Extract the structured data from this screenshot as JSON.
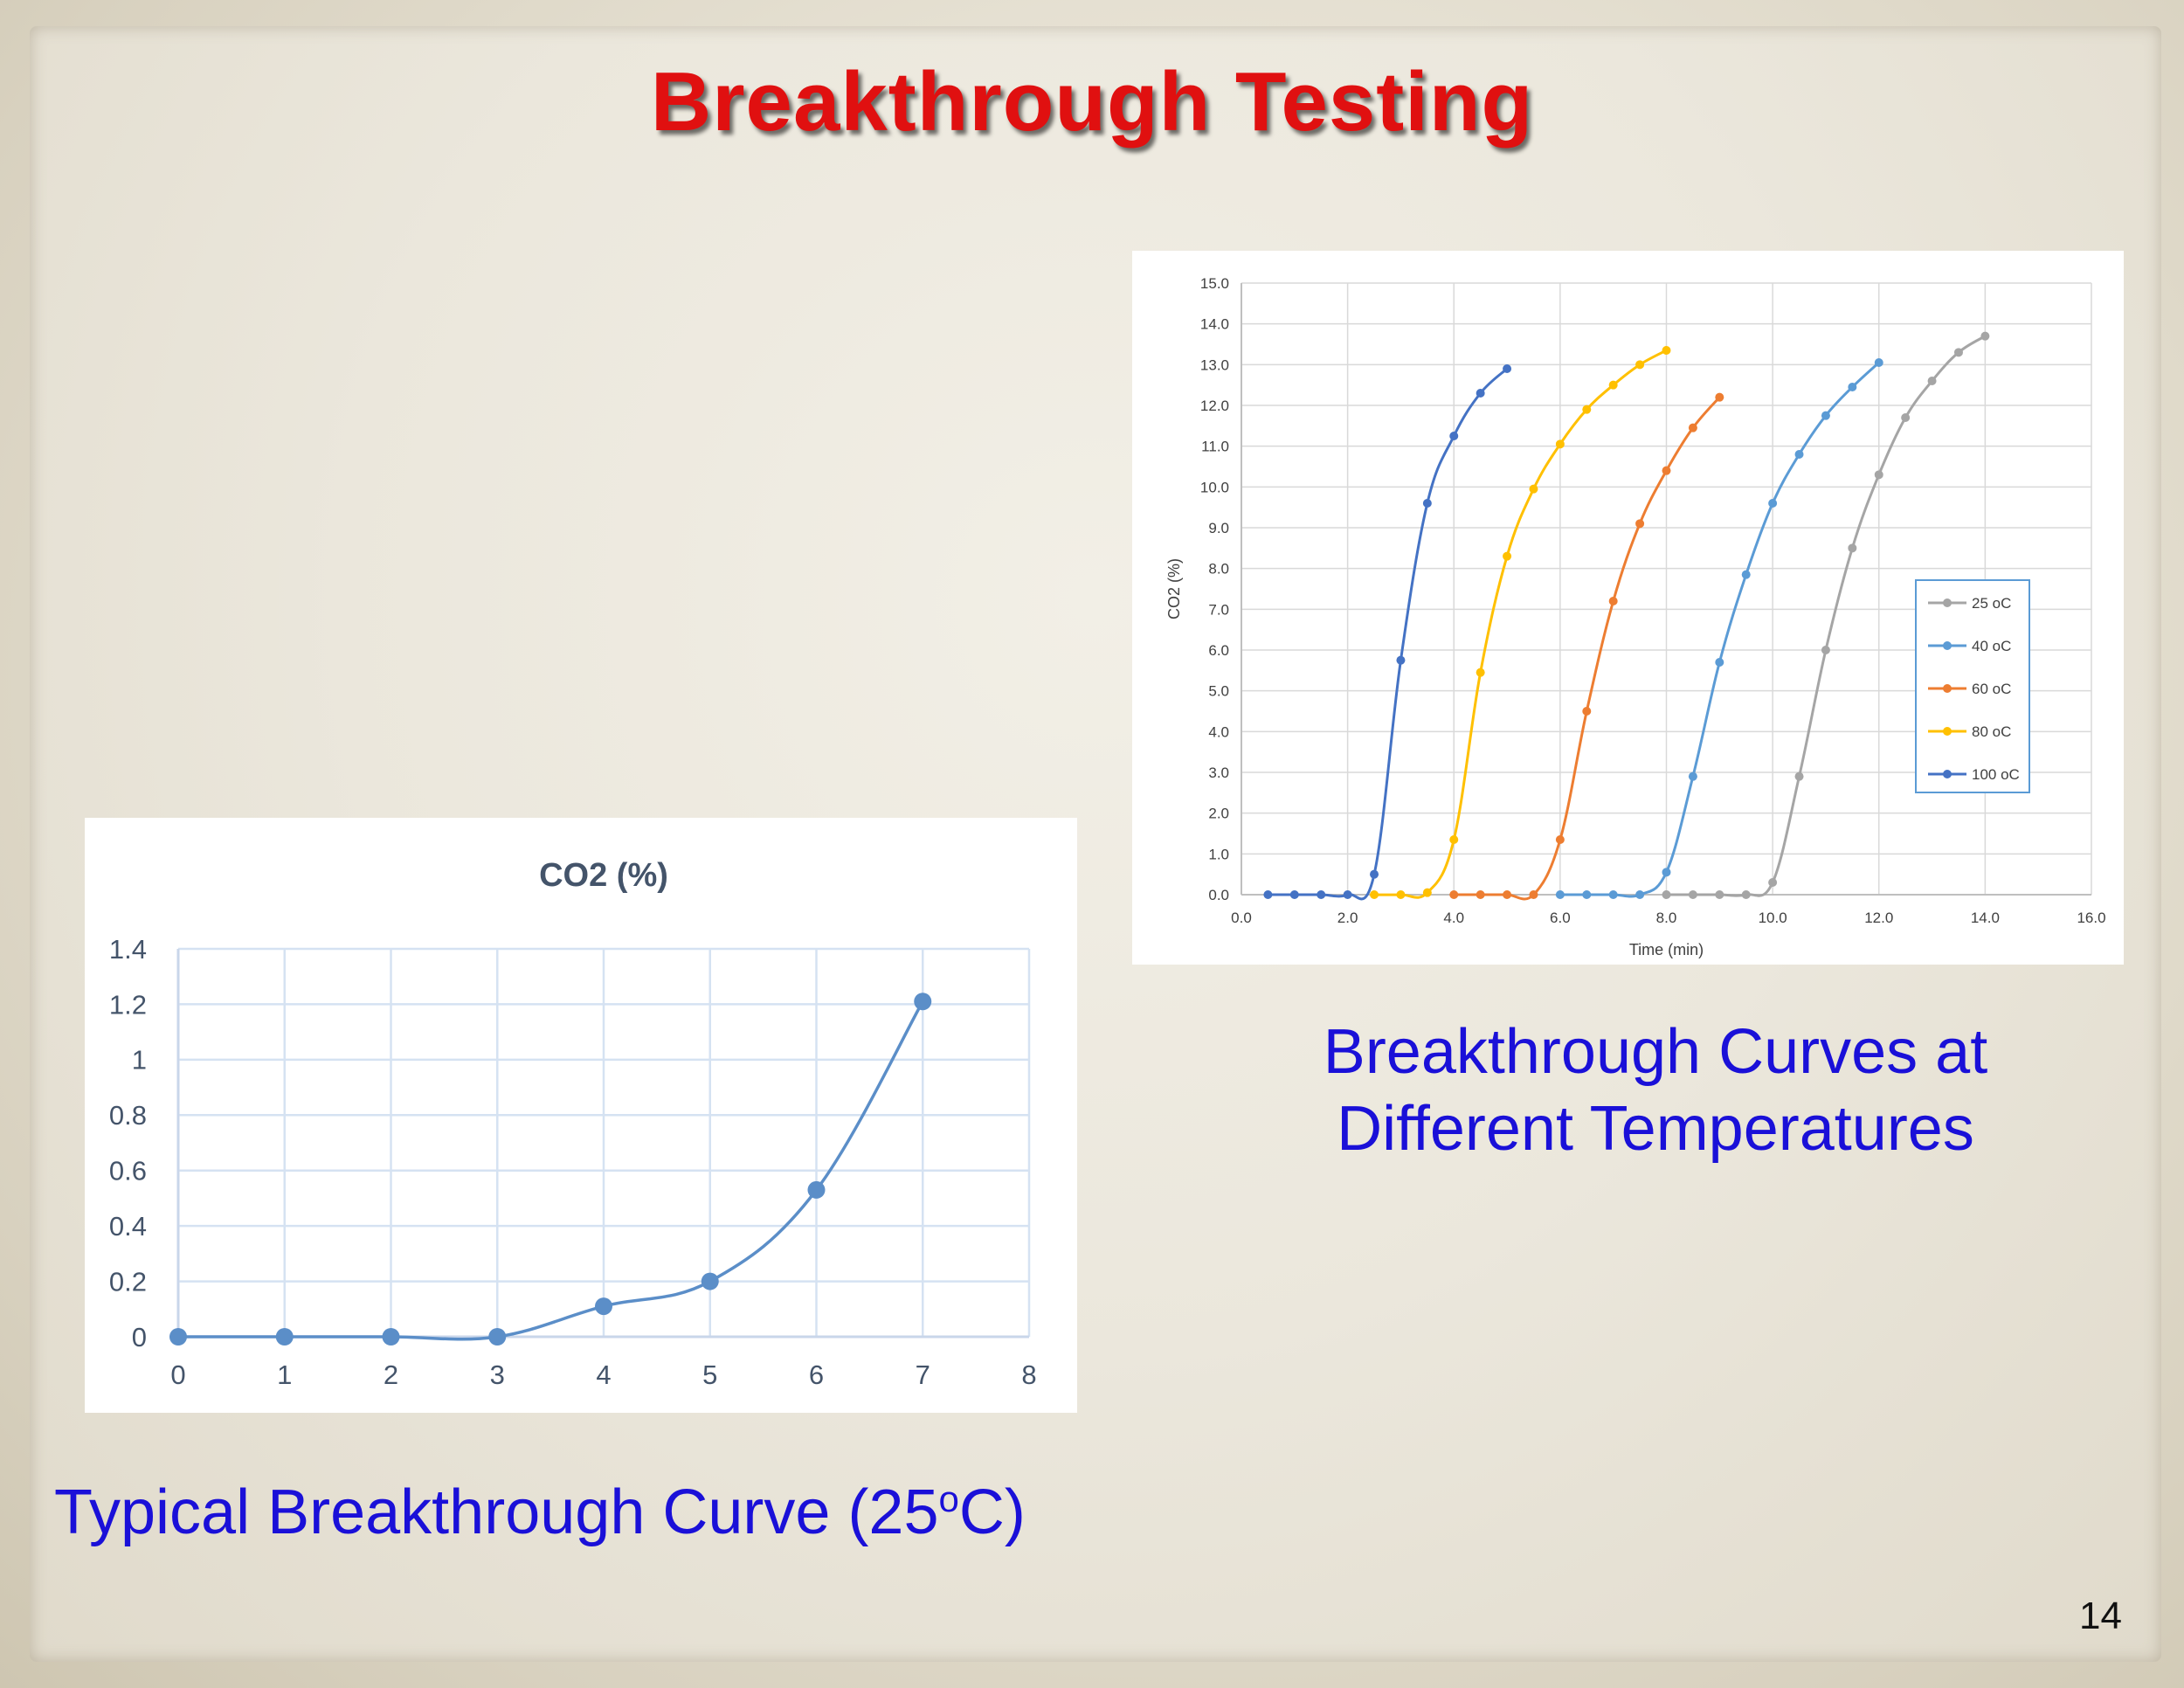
{
  "slide": {
    "title": "Breakthrough Testing",
    "left_caption_main": "Typical Breakthrough Curve (25",
    "left_caption_sup": "o",
    "left_caption_end": "C)",
    "right_caption_line1": "Breakthrough Curves at",
    "right_caption_line2": "Different Temperatures",
    "page_number": "14",
    "title_color": "#e01010",
    "caption_color": "#1a10d8"
  },
  "chart_data": [
    {
      "type": "line",
      "title": "CO2 (%)",
      "xlabel": "",
      "ylabel": "",
      "xlim": [
        0,
        8
      ],
      "ylim": [
        0,
        1.4
      ],
      "x_ticks": [
        "0",
        "1",
        "2",
        "3",
        "4",
        "5",
        "6",
        "7",
        "8"
      ],
      "y_ticks": [
        "0",
        "0.2",
        "0.4",
        "0.6",
        "0.8",
        "1",
        "1.2",
        "1.4"
      ],
      "grid": true,
      "legend": "none",
      "series": [
        {
          "color": "#5b8ec8",
          "x": [
            0,
            1,
            2,
            3,
            4,
            5,
            6,
            7
          ],
          "y": [
            0,
            0,
            0,
            0,
            0.11,
            0.2,
            0.53,
            1.21
          ]
        }
      ]
    },
    {
      "type": "line",
      "title": "",
      "xlabel": "Time (min)",
      "ylabel": "CO2 (%)",
      "xlim": [
        0,
        16
      ],
      "ylim": [
        0,
        15
      ],
      "x_ticks": [
        "0.0",
        "2.0",
        "4.0",
        "6.0",
        "8.0",
        "10.0",
        "12.0",
        "14.0",
        "16.0"
      ],
      "y_ticks": [
        "0.0",
        "1.0",
        "2.0",
        "3.0",
        "4.0",
        "5.0",
        "6.0",
        "7.0",
        "8.0",
        "9.0",
        "10.0",
        "11.0",
        "12.0",
        "13.0",
        "14.0",
        "15.0"
      ],
      "grid": true,
      "legend": "right",
      "series": [
        {
          "name": "25 oC",
          "color": "#a5a5a5",
          "x": [
            8.0,
            8.5,
            9.0,
            9.5,
            10.0,
            10.5,
            11.0,
            11.5,
            12.0,
            12.5,
            13.0,
            13.5,
            14.0
          ],
          "y": [
            0,
            0,
            0,
            0,
            0.3,
            2.9,
            6.0,
            8.5,
            10.3,
            11.7,
            12.6,
            13.3,
            13.7
          ]
        },
        {
          "name": "40 oC",
          "color": "#5b9bd5",
          "x": [
            6.0,
            6.5,
            7.0,
            7.5,
            8.0,
            8.5,
            9.0,
            9.5,
            10.0,
            10.5,
            11.0,
            11.5,
            12.0
          ],
          "y": [
            0,
            0,
            0,
            0,
            0.55,
            2.9,
            5.7,
            7.85,
            9.6,
            10.8,
            11.75,
            12.45,
            13.05
          ]
        },
        {
          "name": "60 oC",
          "color": "#ed7d31",
          "x": [
            4.0,
            4.5,
            5.0,
            5.5,
            6.0,
            6.5,
            7.0,
            7.5,
            8.0,
            8.5,
            9.0
          ],
          "y": [
            0,
            0,
            0,
            0,
            1.35,
            4.5,
            7.2,
            9.1,
            10.4,
            11.45,
            12.2
          ]
        },
        {
          "name": "80 oC",
          "color": "#ffc000",
          "x": [
            2.5,
            3.0,
            3.5,
            4.0,
            4.5,
            5.0,
            5.5,
            6.0,
            6.5,
            7.0,
            7.5,
            8.0
          ],
          "y": [
            0,
            0,
            0.05,
            1.35,
            5.45,
            8.3,
            9.95,
            11.05,
            11.9,
            12.5,
            13.0,
            13.35
          ]
        },
        {
          "name": "100 oC",
          "color": "#4472c4",
          "x": [
            0.5,
            1.0,
            1.5,
            2.0,
            2.5,
            3.0,
            3.5,
            4.0,
            4.5,
            5.0
          ],
          "y": [
            0,
            0,
            0,
            0,
            0.5,
            5.75,
            9.6,
            11.25,
            12.3,
            12.9
          ]
        }
      ]
    }
  ]
}
